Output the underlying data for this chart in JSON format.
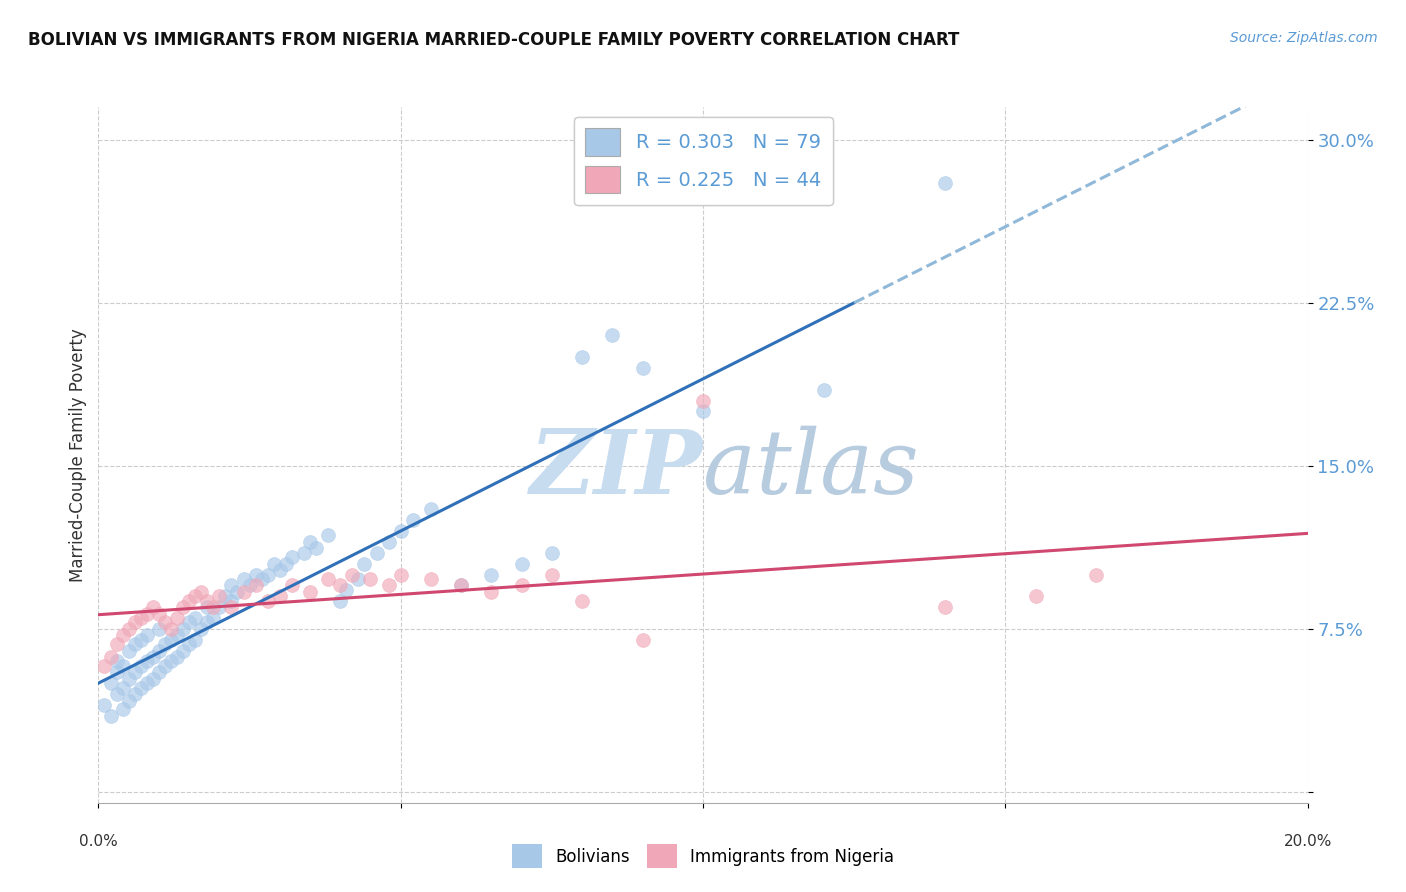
{
  "title": "BOLIVIAN VS IMMIGRANTS FROM NIGERIA MARRIED-COUPLE FAMILY POVERTY CORRELATION CHART",
  "source": "Source: ZipAtlas.com",
  "ylabel": "Married-Couple Family Poverty",
  "yticks": [
    0.0,
    0.075,
    0.15,
    0.225,
    0.3
  ],
  "ytick_labels": [
    "",
    "7.5%",
    "15.0%",
    "22.5%",
    "30.0%"
  ],
  "xlim": [
    0.0,
    0.2
  ],
  "ylim": [
    -0.005,
    0.315
  ],
  "bolivia_R": 0.303,
  "bolivia_N": 79,
  "nigeria_R": 0.225,
  "nigeria_N": 44,
  "bolivia_color": "#A8C8E8",
  "nigeria_color": "#F0A8B8",
  "trend_bolivia_solid_color": "#3070B8",
  "trend_bolivia_dash_color": "#90B8D8",
  "trend_nigeria_color": "#D04870",
  "watermark_color": "#C8DCF0",
  "bolivia_x": [
    0.001,
    0.002,
    0.002,
    0.003,
    0.003,
    0.003,
    0.004,
    0.004,
    0.004,
    0.005,
    0.005,
    0.005,
    0.006,
    0.006,
    0.006,
    0.007,
    0.007,
    0.007,
    0.008,
    0.008,
    0.008,
    0.009,
    0.009,
    0.01,
    0.01,
    0.01,
    0.011,
    0.011,
    0.012,
    0.012,
    0.013,
    0.013,
    0.014,
    0.014,
    0.015,
    0.015,
    0.016,
    0.016,
    0.017,
    0.018,
    0.018,
    0.019,
    0.02,
    0.021,
    0.022,
    0.022,
    0.023,
    0.024,
    0.025,
    0.026,
    0.027,
    0.028,
    0.029,
    0.03,
    0.031,
    0.032,
    0.034,
    0.035,
    0.036,
    0.038,
    0.04,
    0.041,
    0.043,
    0.044,
    0.046,
    0.048,
    0.05,
    0.052,
    0.055,
    0.06,
    0.065,
    0.07,
    0.075,
    0.08,
    0.085,
    0.09,
    0.1,
    0.12,
    0.14
  ],
  "bolivia_y": [
    0.04,
    0.035,
    0.05,
    0.045,
    0.055,
    0.06,
    0.038,
    0.048,
    0.058,
    0.042,
    0.052,
    0.065,
    0.045,
    0.055,
    0.068,
    0.048,
    0.058,
    0.07,
    0.05,
    0.06,
    0.072,
    0.052,
    0.062,
    0.055,
    0.065,
    0.075,
    0.058,
    0.068,
    0.06,
    0.07,
    0.062,
    0.072,
    0.065,
    0.075,
    0.068,
    0.078,
    0.07,
    0.08,
    0.075,
    0.078,
    0.085,
    0.08,
    0.085,
    0.09,
    0.088,
    0.095,
    0.092,
    0.098,
    0.095,
    0.1,
    0.098,
    0.1,
    0.105,
    0.102,
    0.105,
    0.108,
    0.11,
    0.115,
    0.112,
    0.118,
    0.088,
    0.093,
    0.098,
    0.105,
    0.11,
    0.115,
    0.12,
    0.125,
    0.13,
    0.095,
    0.1,
    0.105,
    0.11,
    0.2,
    0.21,
    0.195,
    0.175,
    0.185,
    0.28
  ],
  "nigeria_x": [
    0.001,
    0.002,
    0.003,
    0.004,
    0.005,
    0.006,
    0.007,
    0.008,
    0.009,
    0.01,
    0.011,
    0.012,
    0.013,
    0.014,
    0.015,
    0.016,
    0.017,
    0.018,
    0.019,
    0.02,
    0.022,
    0.024,
    0.026,
    0.028,
    0.03,
    0.032,
    0.035,
    0.038,
    0.04,
    0.042,
    0.045,
    0.048,
    0.05,
    0.055,
    0.06,
    0.065,
    0.07,
    0.075,
    0.08,
    0.09,
    0.1,
    0.14,
    0.155,
    0.165
  ],
  "nigeria_y": [
    0.058,
    0.062,
    0.068,
    0.072,
    0.075,
    0.078,
    0.08,
    0.082,
    0.085,
    0.082,
    0.078,
    0.075,
    0.08,
    0.085,
    0.088,
    0.09,
    0.092,
    0.088,
    0.085,
    0.09,
    0.085,
    0.092,
    0.095,
    0.088,
    0.09,
    0.095,
    0.092,
    0.098,
    0.095,
    0.1,
    0.098,
    0.095,
    0.1,
    0.098,
    0.095,
    0.092,
    0.095,
    0.1,
    0.088,
    0.07,
    0.18,
    0.085,
    0.09,
    0.1
  ],
  "legend_r_label_1": "R = 0.303   N = 79",
  "legend_r_label_2": "R = 0.225   N = 44",
  "trend_solid_end": 0.125
}
